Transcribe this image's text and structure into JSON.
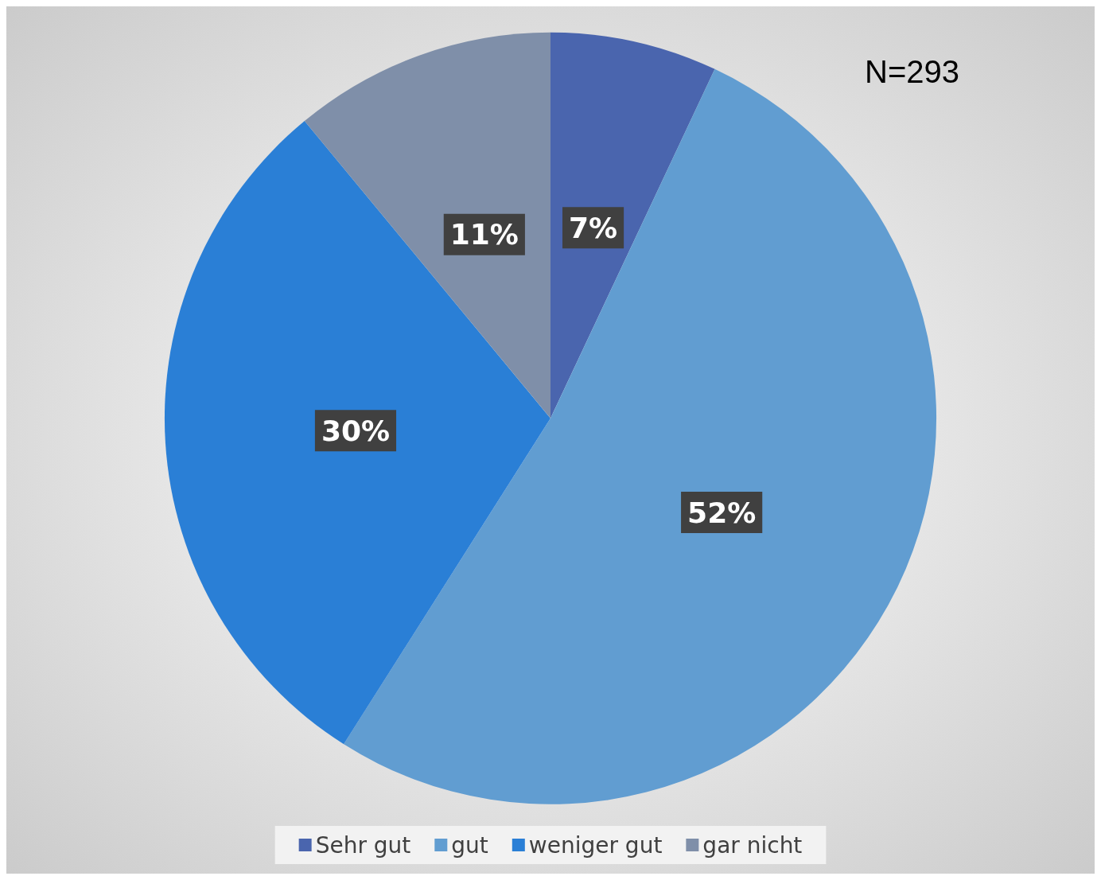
{
  "chart_data": {
    "type": "pie",
    "categories": [
      "Sehr gut",
      "gut",
      "weniger gut",
      "gar nicht"
    ],
    "values": [
      7,
      52,
      30,
      11
    ],
    "colors": [
      "#4a65ae",
      "#619dd1",
      "#2a7fd6",
      "#7f8fa9"
    ],
    "value_labels": [
      "7%",
      "52%",
      "30%",
      "11%"
    ],
    "legend": "bottom",
    "annotations": [
      "N=293"
    ]
  }
}
